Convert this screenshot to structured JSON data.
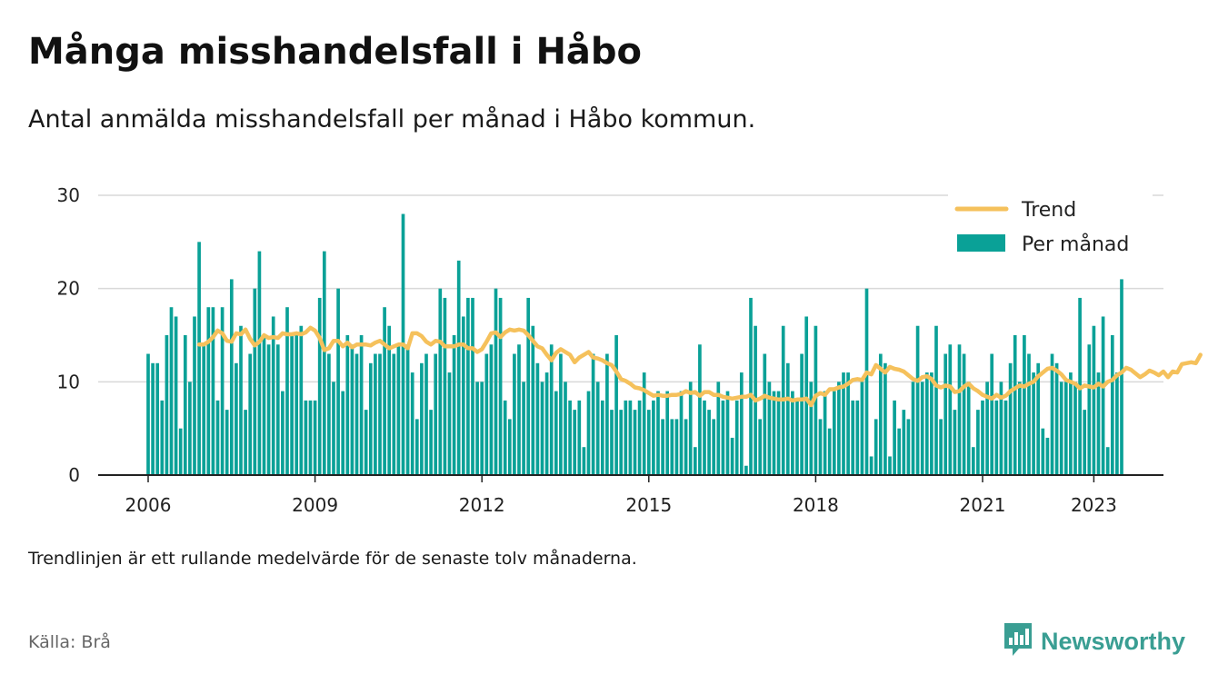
{
  "title": "Många misshandelsfall i Håbo",
  "subtitle": "Antal anmälda misshandelsfall per månad i Håbo kommun.",
  "footnote": "Trendlinjen är ett rullande medelvärde för de senaste tolv månaderna.",
  "source": "Källa: Brå",
  "brand": {
    "name": "Newsworthy",
    "icon": "newsworthy-logo-icon",
    "color": "#3a9e93"
  },
  "colors": {
    "bars": "#0aa197",
    "trend": "#f5c15c",
    "grid": "#d9d9d9",
    "axis": "#222222"
  },
  "chart_data": {
    "type": "bar",
    "title": "Många misshandelsfall i Håbo",
    "subtitle": "Antal anmälda misshandelsfall per månad i Håbo kommun.",
    "start": "2006-01",
    "end": "2023-05",
    "ylim": [
      0,
      30
    ],
    "yticks": [
      0,
      10,
      20,
      30
    ],
    "xticks": [
      "2006",
      "2009",
      "2012",
      "2015",
      "2018",
      "2021",
      "2023"
    ],
    "grid": true,
    "legend_position": "top-right",
    "series": [
      {
        "name": "Per månad",
        "type": "bar",
        "values": [
          13,
          12,
          12,
          8,
          15,
          18,
          17,
          5,
          15,
          10,
          17,
          25,
          14,
          18,
          18,
          8,
          18,
          7,
          21,
          12,
          16,
          7,
          13,
          20,
          24,
          15,
          14,
          17,
          14,
          9,
          18,
          15,
          15,
          16,
          8,
          8,
          8,
          19,
          24,
          13,
          10,
          20,
          9,
          15,
          14,
          13,
          15,
          7,
          12,
          13,
          13,
          18,
          16,
          13,
          14,
          28,
          14,
          11,
          6,
          12,
          13,
          7,
          13,
          20,
          19,
          11,
          15,
          23,
          17,
          19,
          19,
          10,
          10,
          13,
          14,
          20,
          19,
          8,
          6,
          13,
          14,
          10,
          19,
          16,
          12,
          10,
          11,
          14,
          9,
          13,
          10,
          8,
          7,
          8,
          3,
          9,
          13,
          10,
          8,
          13,
          7,
          15,
          7,
          8,
          8,
          7,
          8,
          11,
          7,
          8,
          9,
          6,
          9,
          6,
          6,
          9,
          6,
          10,
          3,
          14,
          8,
          7,
          6,
          10,
          8,
          9,
          4,
          8,
          11,
          1,
          19,
          16,
          6,
          13,
          10,
          9,
          9,
          16,
          12,
          9,
          8,
          13,
          17,
          10,
          16,
          6,
          9,
          5,
          9,
          10,
          11,
          11,
          8,
          8,
          10,
          20,
          2,
          6,
          13,
          12,
          2,
          8,
          5,
          7,
          6,
          10,
          16,
          10,
          11,
          11,
          16,
          6,
          13,
          14,
          7,
          14,
          13,
          10,
          3,
          7,
          8,
          10,
          13,
          8,
          10,
          8,
          12,
          15,
          10,
          15,
          13,
          11,
          12,
          5,
          4,
          13,
          12,
          10,
          10,
          11,
          10,
          19,
          7,
          14,
          16,
          11,
          17,
          3,
          15,
          11,
          21
        ]
      },
      {
        "name": "Trend",
        "type": "line",
        "start": "2006-12",
        "values": [
          14.0,
          14.0,
          14.3,
          14.8,
          15.5,
          15.2,
          14.4,
          14.3,
          15.2,
          15.1,
          15.6,
          14.6,
          13.9,
          14.3,
          15.0,
          14.7,
          14.8,
          14.7,
          15.2,
          15.1,
          15.1,
          15.2,
          15.1,
          15.3,
          15.8,
          15.5,
          14.7,
          13.4,
          13.6,
          14.4,
          14.4,
          13.8,
          14.2,
          13.7,
          14.0,
          14.0,
          14.0,
          13.9,
          14.2,
          14.4,
          14.0,
          13.6,
          13.8,
          14.0,
          14.0,
          13.6,
          15.2,
          15.2,
          14.9,
          14.3,
          14.0,
          14.4,
          14.3,
          13.8,
          13.8,
          13.8,
          14.0,
          14.0,
          13.6,
          13.6,
          13.2,
          13.5,
          14.3,
          15.2,
          15.3,
          14.8,
          15.3,
          15.6,
          15.5,
          15.6,
          15.5,
          15.0,
          14.4,
          13.8,
          13.6,
          12.9,
          12.3,
          13.1,
          13.5,
          13.2,
          12.9,
          12.1,
          12.6,
          12.9,
          13.2,
          12.6,
          12.5,
          12.3,
          12.0,
          11.8,
          11.1,
          10.3,
          10.1,
          9.8,
          9.4,
          9.3,
          9.1,
          8.8,
          8.5,
          8.6,
          8.5,
          8.5,
          8.6,
          8.6,
          8.7,
          9.0,
          8.8,
          8.9,
          8.5,
          8.9,
          8.9,
          8.6,
          8.6,
          8.4,
          8.3,
          8.2,
          8.3,
          8.4,
          8.4,
          8.6,
          8.0,
          8.2,
          8.5,
          8.3,
          8.2,
          8.1,
          8.1,
          8.2,
          8.0,
          8.1,
          8.1,
          8.2,
          7.5,
          8.5,
          8.8,
          8.6,
          9.2,
          9.2,
          9.4,
          9.5,
          9.8,
          10.2,
          10.3,
          10.2,
          11.0,
          10.8,
          11.8,
          11.4,
          11.0,
          11.6,
          11.4,
          11.3,
          11.1,
          10.7,
          10.3,
          10.1,
          10.5,
          10.6,
          10.3,
          9.6,
          9.4,
          9.6,
          9.5,
          8.9,
          9.0,
          9.5,
          9.8,
          9.3,
          9.0,
          8.6,
          8.4,
          8.2,
          8.6,
          8.3,
          8.5,
          9.0,
          9.3,
          9.6,
          9.5,
          9.8,
          10.0,
          10.6,
          11.0,
          11.4,
          11.5,
          11.2,
          10.8,
          10.2,
          10.0,
          9.8,
          9.3,
          9.6,
          9.5,
          9.4,
          9.8,
          9.5,
          10.0,
          10.2,
          10.7,
          11.0,
          11.5,
          11.3,
          10.9,
          10.5,
          10.8,
          11.2,
          11.0,
          10.7,
          11.1,
          10.5,
          11.1,
          11.0,
          11.9,
          12.0,
          12.1,
          12.0,
          12.9
        ]
      }
    ]
  }
}
